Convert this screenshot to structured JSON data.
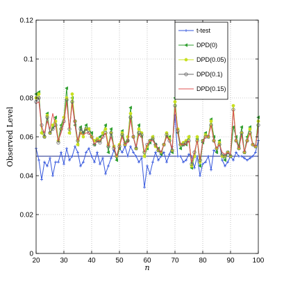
{
  "chart_data": {
    "type": "line",
    "title": "",
    "xlabel": "n",
    "ylabel": "Observed Level",
    "xlim": [
      20,
      100
    ],
    "ylim": [
      0,
      0.12
    ],
    "xticks": [
      "20",
      "30",
      "40",
      "50",
      "60",
      "70",
      "80",
      "90",
      "100"
    ],
    "yticks": [
      "0",
      "0.02",
      "0.04",
      "0.06",
      "0.08",
      "0.1",
      "0.12"
    ],
    "grid": true,
    "legend_position": "top-right",
    "reference_line": 0.05,
    "x": [
      20,
      21,
      22,
      23,
      24,
      25,
      26,
      27,
      28,
      29,
      30,
      31,
      32,
      33,
      34,
      35,
      36,
      37,
      38,
      39,
      40,
      41,
      42,
      43,
      44,
      45,
      46,
      47,
      48,
      49,
      50,
      51,
      52,
      53,
      54,
      55,
      56,
      57,
      58,
      59,
      60,
      61,
      62,
      63,
      64,
      65,
      66,
      67,
      68,
      69,
      70,
      71,
      72,
      73,
      74,
      75,
      76,
      77,
      78,
      79,
      80,
      81,
      82,
      83,
      84,
      85,
      86,
      87,
      88,
      89,
      90,
      91,
      92,
      93,
      94,
      95,
      96,
      97,
      98,
      99,
      100
    ],
    "series": [
      {
        "name": "t-test",
        "color": "#3355dd",
        "marker": "plus",
        "values": [
          0.054,
          0.048,
          0.038,
          0.047,
          0.045,
          0.049,
          0.04,
          0.047,
          0.047,
          0.052,
          0.046,
          0.054,
          0.048,
          0.05,
          0.055,
          0.052,
          0.045,
          0.047,
          0.052,
          0.054,
          0.05,
          0.047,
          0.052,
          0.046,
          0.049,
          0.041,
          0.045,
          0.049,
          0.053,
          0.05,
          0.054,
          0.052,
          0.055,
          0.05,
          0.055,
          0.052,
          0.05,
          0.047,
          0.049,
          0.034,
          0.045,
          0.041,
          0.047,
          0.052,
          0.048,
          0.05,
          0.052,
          0.047,
          0.051,
          0.055,
          0.071,
          0.05,
          0.05,
          0.047,
          0.048,
          0.051,
          0.05,
          0.044,
          0.05,
          0.04,
          0.046,
          0.047,
          0.05,
          0.043,
          0.053,
          0.052,
          0.057,
          0.048,
          0.045,
          0.047,
          0.05,
          0.048,
          0.052,
          0.05,
          0.05,
          0.049,
          0.048,
          0.049,
          0.05,
          0.052,
          0.058
        ]
      },
      {
        "name": "DPD(0)",
        "color": "#2e9e2e",
        "marker": "triangle-left",
        "values": [
          0.082,
          0.083,
          0.062,
          0.06,
          0.072,
          0.062,
          0.065,
          0.07,
          0.058,
          0.066,
          0.07,
          0.085,
          0.062,
          0.08,
          0.066,
          0.056,
          0.065,
          0.062,
          0.066,
          0.064,
          0.062,
          0.056,
          0.058,
          0.06,
          0.061,
          0.066,
          0.052,
          0.064,
          0.055,
          0.048,
          0.054,
          0.063,
          0.057,
          0.058,
          0.075,
          0.06,
          0.054,
          0.066,
          0.06,
          0.05,
          0.054,
          0.057,
          0.06,
          0.056,
          0.054,
          0.051,
          0.056,
          0.06,
          0.06,
          0.052,
          0.08,
          0.062,
          0.054,
          0.056,
          0.056,
          0.06,
          0.044,
          0.05,
          0.059,
          0.045,
          0.057,
          0.062,
          0.06,
          0.069,
          0.06,
          0.052,
          0.058,
          0.05,
          0.048,
          0.052,
          0.05,
          0.065,
          0.06,
          0.055,
          0.065,
          0.052,
          0.06,
          0.065,
          0.056,
          0.055,
          0.07
        ]
      },
      {
        "name": "DPD(0.05)",
        "color": "#c8e020",
        "marker": "circle-filled",
        "values": [
          0.08,
          0.082,
          0.062,
          0.06,
          0.071,
          0.062,
          0.066,
          0.068,
          0.058,
          0.064,
          0.07,
          0.08,
          0.062,
          0.082,
          0.068,
          0.056,
          0.062,
          0.06,
          0.064,
          0.064,
          0.06,
          0.058,
          0.059,
          0.058,
          0.062,
          0.064,
          0.056,
          0.062,
          0.055,
          0.05,
          0.056,
          0.062,
          0.056,
          0.06,
          0.072,
          0.06,
          0.054,
          0.064,
          0.062,
          0.05,
          0.055,
          0.058,
          0.06,
          0.055,
          0.053,
          0.052,
          0.056,
          0.062,
          0.059,
          0.053,
          0.078,
          0.064,
          0.056,
          0.057,
          0.058,
          0.06,
          0.045,
          0.05,
          0.06,
          0.047,
          0.058,
          0.061,
          0.06,
          0.068,
          0.058,
          0.054,
          0.057,
          0.05,
          0.05,
          0.052,
          0.05,
          0.076,
          0.058,
          0.054,
          0.062,
          0.052,
          0.058,
          0.064,
          0.056,
          0.055,
          0.068
        ]
      },
      {
        "name": "DPD(0.1)",
        "color": "#666666",
        "marker": "circle-open",
        "values": [
          0.078,
          0.08,
          0.066,
          0.06,
          0.07,
          0.062,
          0.064,
          0.066,
          0.057,
          0.064,
          0.068,
          0.079,
          0.064,
          0.078,
          0.068,
          0.058,
          0.064,
          0.062,
          0.064,
          0.062,
          0.06,
          0.056,
          0.058,
          0.057,
          0.06,
          0.062,
          0.055,
          0.062,
          0.054,
          0.05,
          0.055,
          0.061,
          0.056,
          0.058,
          0.07,
          0.06,
          0.054,
          0.062,
          0.061,
          0.052,
          0.056,
          0.058,
          0.059,
          0.056,
          0.053,
          0.052,
          0.056,
          0.061,
          0.058,
          0.053,
          0.076,
          0.063,
          0.056,
          0.056,
          0.057,
          0.058,
          0.046,
          0.052,
          0.058,
          0.048,
          0.058,
          0.06,
          0.06,
          0.066,
          0.058,
          0.054,
          0.056,
          0.051,
          0.05,
          0.052,
          0.05,
          0.074,
          0.058,
          0.054,
          0.062,
          0.052,
          0.058,
          0.062,
          0.056,
          0.055,
          0.066
        ]
      },
      {
        "name": "DPD(0.15)",
        "color": "#e05050",
        "marker": "none",
        "values": [
          0.077,
          0.078,
          0.065,
          0.062,
          0.068,
          0.064,
          0.072,
          0.066,
          0.058,
          0.062,
          0.067,
          0.078,
          0.064,
          0.077,
          0.066,
          0.058,
          0.062,
          0.061,
          0.062,
          0.062,
          0.06,
          0.056,
          0.058,
          0.058,
          0.06,
          0.062,
          0.055,
          0.06,
          0.055,
          0.05,
          0.055,
          0.06,
          0.056,
          0.057,
          0.069,
          0.06,
          0.055,
          0.061,
          0.06,
          0.052,
          0.056,
          0.058,
          0.058,
          0.056,
          0.054,
          0.052,
          0.056,
          0.06,
          0.058,
          0.054,
          0.075,
          0.062,
          0.056,
          0.056,
          0.056,
          0.058,
          0.047,
          0.052,
          0.058,
          0.048,
          0.057,
          0.06,
          0.06,
          0.066,
          0.058,
          0.054,
          0.056,
          0.052,
          0.051,
          0.052,
          0.051,
          0.074,
          0.058,
          0.054,
          0.061,
          0.052,
          0.058,
          0.062,
          0.056,
          0.055,
          0.065
        ]
      }
    ]
  }
}
